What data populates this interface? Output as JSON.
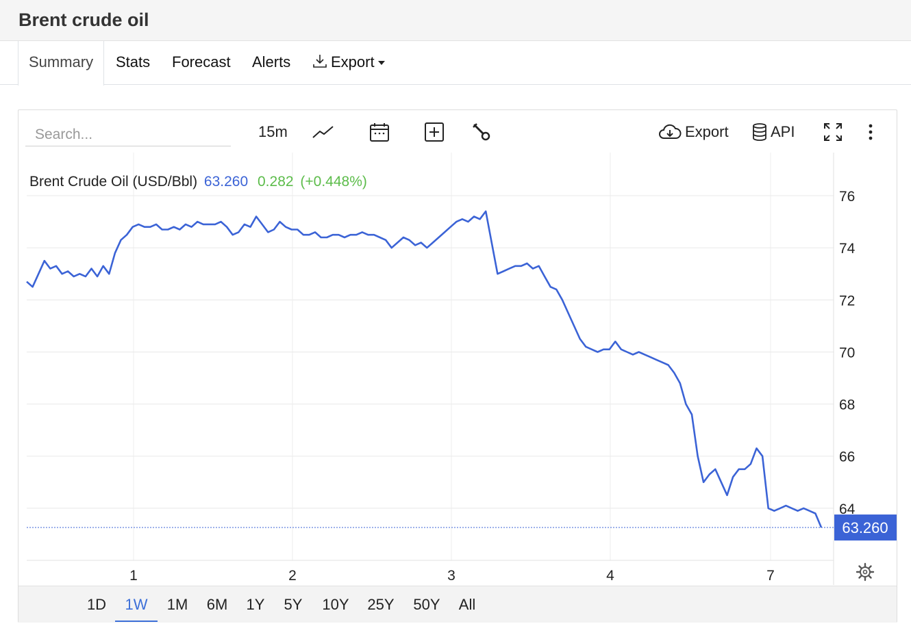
{
  "page": {
    "title": "Brent crude oil",
    "tabs": [
      "Summary",
      "Stats",
      "Forecast",
      "Alerts",
      "Export"
    ]
  },
  "toolbar": {
    "search_placeholder": "Search...",
    "interval": "15m",
    "export_label": "Export",
    "api_label": "API"
  },
  "legend": {
    "label": "Brent Crude Oil (USD/Bbl)",
    "price": "63.260",
    "change": "0.282",
    "change_pct": "(+0.448%)"
  },
  "ranges": [
    "1D",
    "1W",
    "1M",
    "6M",
    "1Y",
    "5Y",
    "10Y",
    "25Y",
    "50Y",
    "All"
  ],
  "active_range": "1W",
  "colors": {
    "line": "#3b63d6",
    "up": "#5cbc4a",
    "accent": "#3c6fd8"
  },
  "chart_data": {
    "type": "line",
    "x_ticks": [
      "1",
      "2",
      "3",
      "4",
      "7"
    ],
    "y_ticks": [
      "64",
      "66",
      "68",
      "70",
      "72",
      "74",
      "76"
    ],
    "ylim": [
      62.0,
      77.5
    ],
    "last_value": 63.26,
    "last_value_label": "63.260",
    "grid": true,
    "series": [
      {
        "values": [
          72.7,
          72.5,
          73.0,
          73.5,
          73.2,
          73.3,
          73.0,
          73.1,
          72.9,
          73.0,
          72.9,
          73.2,
          72.9,
          73.3,
          73.0,
          73.8,
          74.3,
          74.5,
          74.8,
          74.9,
          74.8,
          74.8,
          74.9,
          74.7,
          74.7,
          74.8,
          74.7,
          74.9,
          74.8,
          75.0,
          74.9,
          74.9,
          74.9,
          75.0,
          74.8,
          74.5,
          74.6,
          74.9,
          74.8,
          75.2,
          74.9,
          74.6,
          74.7,
          75.0,
          74.8,
          74.7,
          74.7,
          74.5,
          74.5,
          74.6,
          74.4,
          74.4,
          74.5,
          74.5,
          74.4,
          74.5,
          74.5,
          74.6,
          74.5,
          74.5,
          74.4,
          74.3,
          74.0,
          74.2,
          74.4,
          74.3,
          74.1,
          74.2,
          74.0,
          74.2,
          74.4,
          74.6,
          74.8,
          75.0,
          75.1,
          75.0,
          75.2,
          75.1,
          75.4,
          74.2,
          73.0,
          73.1,
          73.2,
          73.3,
          73.3,
          73.4,
          73.2,
          73.3,
          72.9,
          72.5,
          72.4,
          72.0,
          71.5,
          71.0,
          70.5,
          70.2,
          70.1,
          70.0,
          70.1,
          70.1,
          70.4,
          70.1,
          70.0,
          69.9,
          70.0,
          69.9,
          69.8,
          69.7,
          69.6,
          69.5,
          69.2,
          68.8,
          68.0,
          67.6,
          66.0,
          65.0,
          65.3,
          65.5,
          65.0,
          64.5,
          65.2,
          65.5,
          65.5,
          65.7,
          66.3,
          66.0,
          64.0,
          63.9,
          64.0,
          64.1,
          64.0,
          63.9,
          64.0,
          63.9,
          63.8,
          63.26
        ],
        "y_ticks_visible": true
      }
    ]
  }
}
